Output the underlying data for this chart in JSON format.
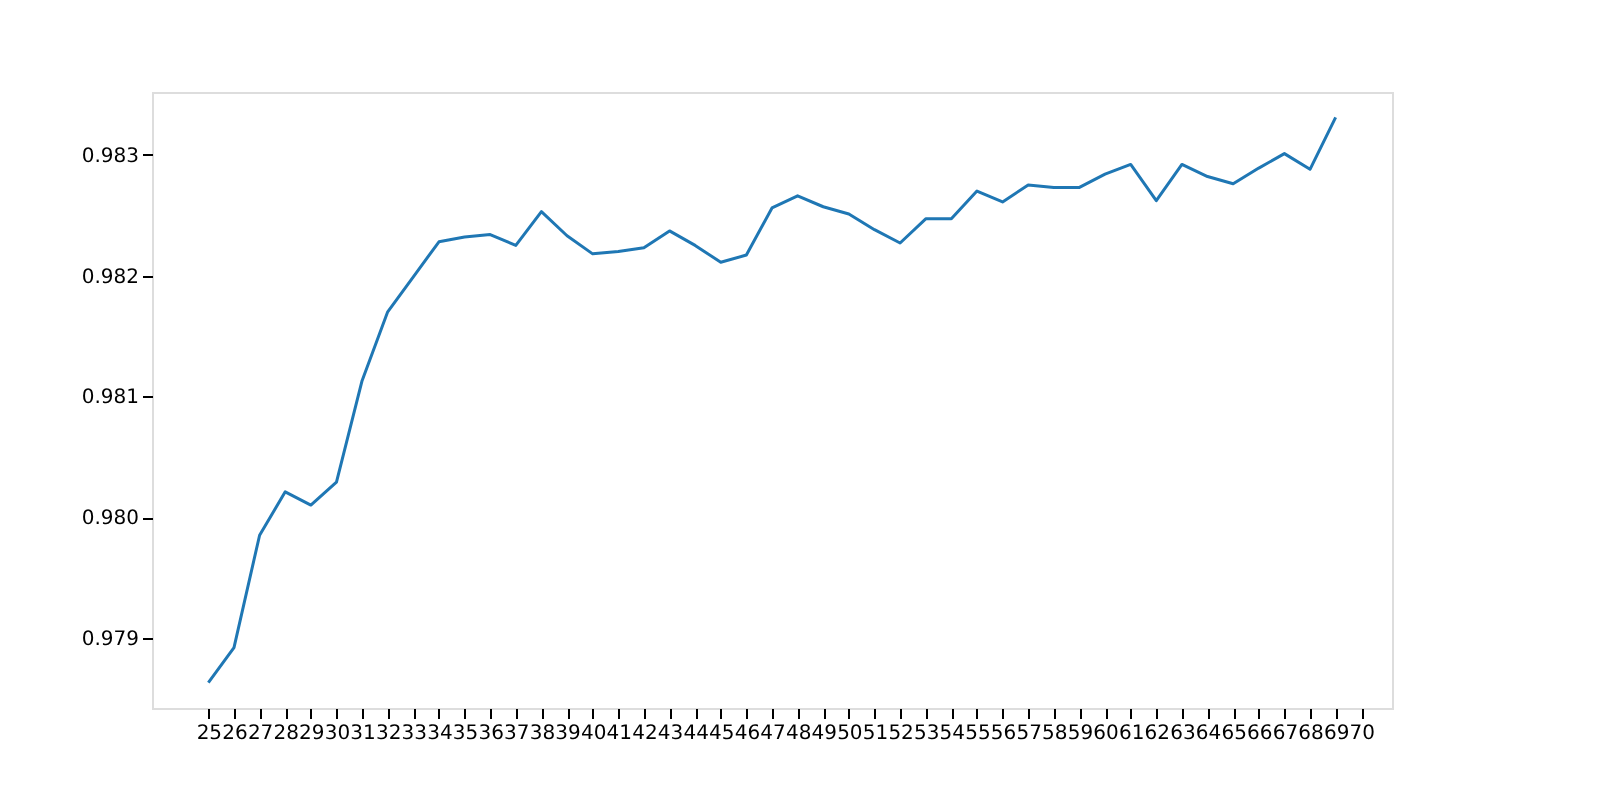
{
  "chart_data": {
    "type": "line",
    "x": [
      25,
      26,
      27,
      28,
      29,
      30,
      31,
      32,
      33,
      34,
      35,
      36,
      37,
      38,
      39,
      40,
      41,
      42,
      43,
      44,
      45,
      46,
      47,
      48,
      49,
      50,
      51,
      52,
      53,
      54,
      55,
      56,
      57,
      58,
      59,
      60,
      61,
      62,
      63,
      64,
      65,
      66,
      67,
      68,
      69
    ],
    "series": [
      {
        "color": "#1f77b4",
        "values": [
          0.97863,
          0.97892,
          0.97985,
          0.98021,
          0.9801,
          0.98029,
          0.98113,
          0.9817,
          0.98199,
          0.98228,
          0.98232,
          0.98234,
          0.98225,
          0.98253,
          0.98233,
          0.98218,
          0.9822,
          0.98223,
          0.98237,
          0.98225,
          0.98211,
          0.98217,
          0.98256,
          0.98266,
          0.98257,
          0.98251,
          0.98238,
          0.98227,
          0.98247,
          0.98247,
          0.9827,
          0.98261,
          0.98275,
          0.98273,
          0.98273,
          0.98284,
          0.98292,
          0.98262,
          0.98292,
          0.98282,
          0.98276,
          0.98289,
          0.98301,
          0.98288,
          0.98331
        ]
      }
    ],
    "xlim": [
      22.8,
      71.2
    ],
    "xticks": [
      25,
      26,
      27,
      28,
      29,
      30,
      31,
      32,
      33,
      34,
      35,
      36,
      37,
      38,
      39,
      40,
      41,
      42,
      43,
      44,
      45,
      46,
      47,
      48,
      49,
      50,
      51,
      52,
      53,
      54,
      55,
      56,
      57,
      58,
      59,
      60,
      61,
      62,
      63,
      64,
      65,
      66,
      67,
      68,
      69,
      70
    ],
    "ylim": [
      0.97842,
      0.98352
    ],
    "yticks": [
      0.979,
      {
        "value": 0.98,
        "label": "0.980"
      },
      0.981,
      0.982,
      0.983
    ],
    "grid": false,
    "marker": "none",
    "line_style": "solid"
  }
}
